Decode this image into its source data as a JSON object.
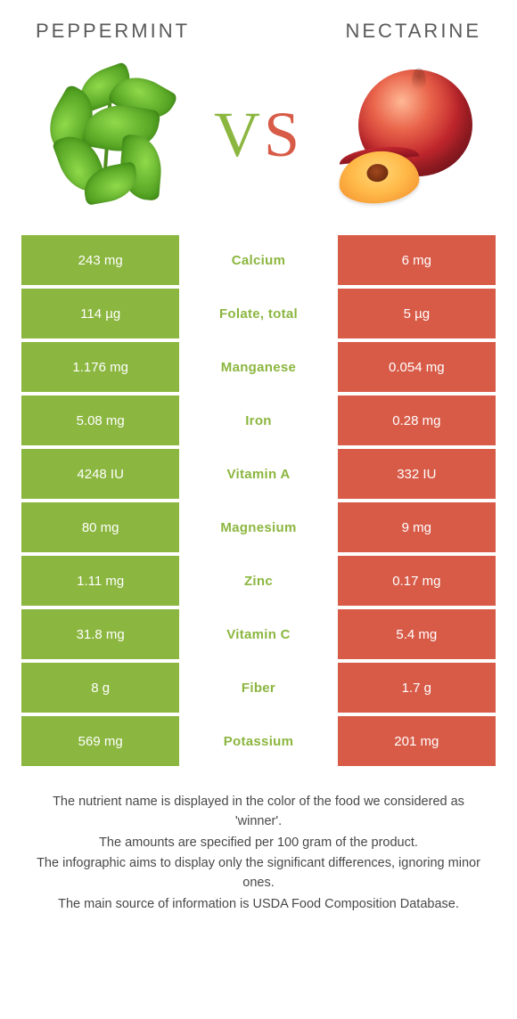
{
  "header": {
    "left_title": "Peppermint",
    "right_title": "Nectarine"
  },
  "vs": {
    "v": "V",
    "s": "S"
  },
  "colors": {
    "left": "#8bb63f",
    "right": "#d85b48",
    "text": "#484848",
    "background": "#ffffff"
  },
  "rows": [
    {
      "left": "243 mg",
      "nutrient": "Calcium",
      "right": "6 mg",
      "winner": "left"
    },
    {
      "left": "114 µg",
      "nutrient": "Folate, total",
      "right": "5 µg",
      "winner": "left"
    },
    {
      "left": "1.176 mg",
      "nutrient": "Manganese",
      "right": "0.054 mg",
      "winner": "left"
    },
    {
      "left": "5.08 mg",
      "nutrient": "Iron",
      "right": "0.28 mg",
      "winner": "left"
    },
    {
      "left": "4248 IU",
      "nutrient": "Vitamin A",
      "right": "332 IU",
      "winner": "left"
    },
    {
      "left": "80 mg",
      "nutrient": "Magnesium",
      "right": "9 mg",
      "winner": "left"
    },
    {
      "left": "1.11 mg",
      "nutrient": "Zinc",
      "right": "0.17 mg",
      "winner": "left"
    },
    {
      "left": "31.8 mg",
      "nutrient": "Vitamin C",
      "right": "5.4 mg",
      "winner": "left"
    },
    {
      "left": "8 g",
      "nutrient": "Fiber",
      "right": "1.7 g",
      "winner": "left"
    },
    {
      "left": "569 mg",
      "nutrient": "Potassium",
      "right": "201 mg",
      "winner": "left"
    }
  ],
  "footer": {
    "line1": "The nutrient name is displayed in the color of the food we considered as 'winner'.",
    "line2": "The amounts are specified per 100 gram of the product.",
    "line3": "The infographic aims to display only the significant differences, ignoring minor ones.",
    "line4": "The main source of information is USDA Food Composition Database."
  }
}
